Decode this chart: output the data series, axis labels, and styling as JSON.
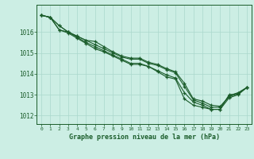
{
  "bg_color": "#cceee4",
  "grid_color": "#aad8cc",
  "line_color": "#1a5c2a",
  "text_color": "#1a5c2a",
  "xlabel": "Graphe pression niveau de la mer (hPa)",
  "ylim": [
    1011.6,
    1017.3
  ],
  "xlim": [
    -0.5,
    23.5
  ],
  "yticks": [
    1012,
    1013,
    1014,
    1015,
    1016
  ],
  "xticks": [
    0,
    1,
    2,
    3,
    4,
    5,
    6,
    7,
    8,
    9,
    10,
    11,
    12,
    13,
    14,
    15,
    16,
    17,
    18,
    19,
    20,
    21,
    22,
    23
  ],
  "line1": [
    1016.8,
    1016.7,
    1016.3,
    1016.0,
    1015.8,
    1015.6,
    1015.55,
    1015.3,
    1015.05,
    1014.85,
    1014.75,
    1014.75,
    1014.55,
    1014.45,
    1014.25,
    1014.1,
    1013.55,
    1012.8,
    1012.7,
    1012.5,
    1012.45,
    1012.9,
    1013.05,
    1013.35
  ],
  "line2": [
    1016.8,
    1016.7,
    1016.1,
    1015.95,
    1015.7,
    1015.45,
    1015.2,
    1015.05,
    1014.85,
    1014.65,
    1014.45,
    1014.45,
    1014.35,
    1014.1,
    1013.85,
    1013.75,
    1012.8,
    1012.5,
    1012.4,
    1012.3,
    1012.3,
    1012.85,
    1013.0,
    1013.35
  ],
  "line3": [
    1016.8,
    1016.7,
    1016.1,
    1016.0,
    1015.75,
    1015.5,
    1015.3,
    1015.1,
    1014.9,
    1014.7,
    1014.5,
    1014.5,
    1014.35,
    1014.15,
    1013.95,
    1013.8,
    1013.1,
    1012.65,
    1012.5,
    1012.3,
    1012.3,
    1013.0,
    1013.05,
    1013.35
  ],
  "line4": [
    1016.8,
    1016.7,
    1016.3,
    1016.0,
    1015.8,
    1015.6,
    1015.4,
    1015.2,
    1015.0,
    1014.8,
    1014.7,
    1014.7,
    1014.5,
    1014.4,
    1014.2,
    1014.05,
    1013.4,
    1012.75,
    1012.6,
    1012.4,
    1012.4,
    1012.95,
    1013.1,
    1013.35
  ]
}
